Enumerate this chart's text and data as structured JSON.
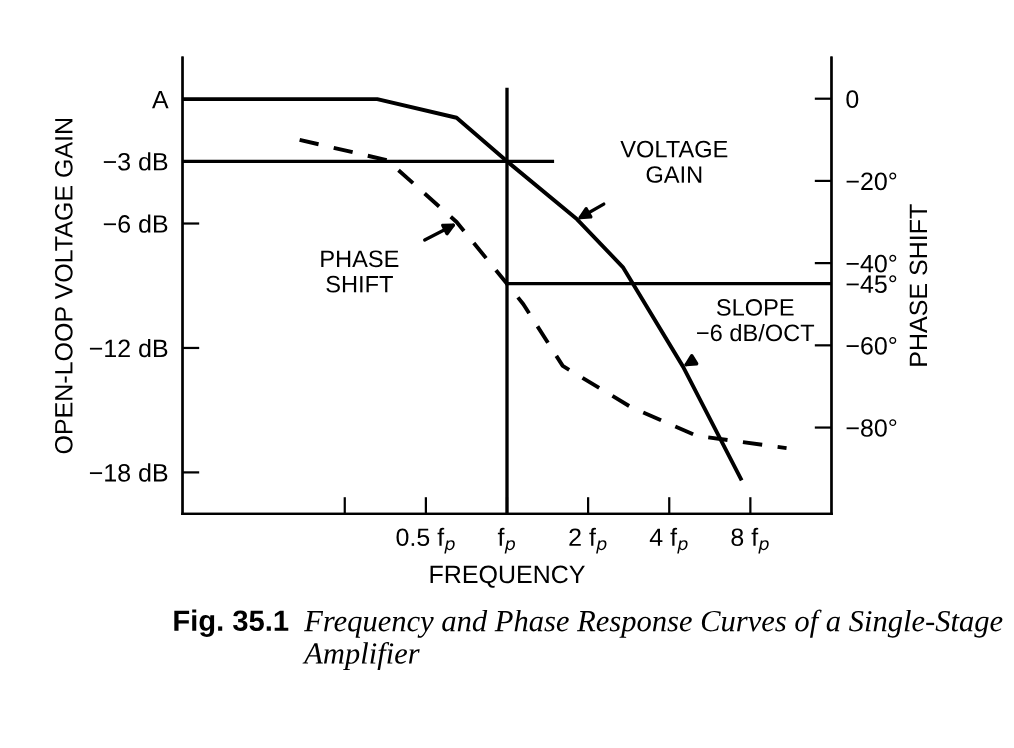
{
  "chart_data": {
    "type": "line",
    "title": "Fig. 35.1",
    "subtitle": "Frequency and Phase Response Curves of a Single-Stage Amplifier",
    "xlabel": "FREQUENCY",
    "ylabel": "OPEN-LOOP VOLTAGE GAIN",
    "y2label": "PHASE SHIFT",
    "log": "x",
    "grid": false,
    "legend": false,
    "marker": "none",
    "xlim": [
      0.0625,
      16
    ],
    "xticks": [
      {
        "value": 0.25,
        "label": null
      },
      {
        "value": 0.5,
        "label": "0.5 f$_{p}$"
      },
      {
        "value": 1,
        "label": "f$_{p}$"
      },
      {
        "value": 2,
        "label": "2 f$_{p}$"
      },
      {
        "value": 4,
        "label": "4 f$_{p}$"
      },
      {
        "value": 8,
        "label": "8 f$_{p}$"
      }
    ],
    "ylim": [
      -20,
      2
    ],
    "yticks": [
      {
        "value": 0,
        "label": "A"
      },
      {
        "value": -3,
        "label": "−3 dB"
      },
      {
        "value": -6,
        "label": "−6 dB"
      },
      {
        "value": -12,
        "label": "−12 dB"
      },
      {
        "value": -18,
        "label": "−18 dB"
      }
    ],
    "y2lim": [
      -101,
      10
    ],
    "y2ticks": [
      {
        "value": 0,
        "label": "0"
      },
      {
        "value": -20,
        "label": "−20°"
      },
      {
        "value": -40,
        "label": "−40°"
      },
      {
        "value": -45,
        "label": "−45°"
      },
      {
        "value": -60,
        "label": "−60°"
      },
      {
        "value": -80,
        "label": "−80°"
      }
    ],
    "series": [
      {
        "color": "#000000",
        "line_style": "solid",
        "x": [
          0.0625,
          0.33,
          0.65,
          1,
          1.82,
          2.69,
          4.5,
          7.37
        ],
        "values": [
          0,
          0,
          -0.9,
          -3,
          -5.8,
          -8.1,
          -12.9,
          -18.3
        ]
      },
      {
        "color": "#000000",
        "line_style": "dashed",
        "axis": "y2",
        "x": [
          0.17,
          0.36,
          0.65,
          1,
          1.15,
          1.61,
          2.88,
          5.05,
          10.9
        ],
        "values": [
          -10,
          -15,
          -30,
          -45,
          -50,
          -65,
          -75,
          -82,
          -85
        ]
      }
    ],
    "ref_lines": [
      {
        "axis": "y",
        "value": -3,
        "label": null,
        "color": "#000000"
      },
      {
        "axis": "x",
        "value": 1,
        "label": null,
        "color": "#000000"
      },
      {
        "axis": "y2",
        "value": -45,
        "label": null,
        "color": "#000000"
      }
    ],
    "annotations": [
      {
        "text": "VOLTAGE\nGAIN",
        "x": 1.82,
        "y": -5.8
      },
      {
        "text": "PHASE\nSHIFT",
        "x": 0.65,
        "y": -6
      },
      {
        "text": "SLOPE\n−6 dB/OCT",
        "x": 4.5,
        "y": -12.9
      }
    ]
  }
}
